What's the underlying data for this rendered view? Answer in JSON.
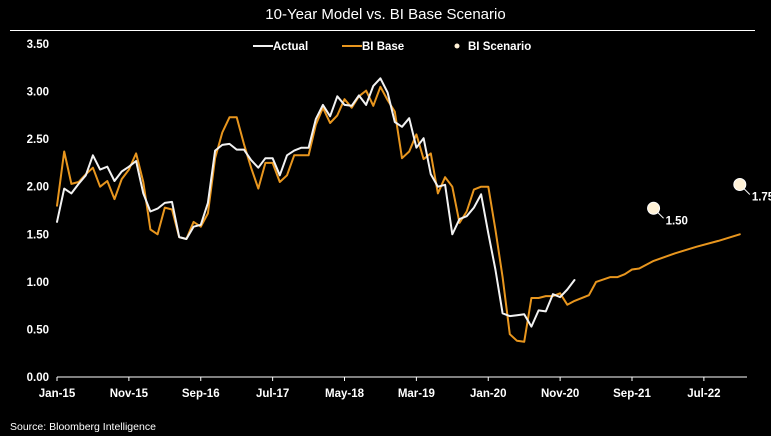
{
  "title": "10-Year Model vs. BI Base Scenario",
  "source": "Source: Bloomberg Intelligence",
  "colors": {
    "background": "#000000",
    "actual": "#f2f2f2",
    "bi_base": "#e8961e",
    "scenario": "#fff1d6",
    "text": "#ffffff"
  },
  "chart_data": {
    "type": "line",
    "title": "10-Year Model vs. BI Base Scenario",
    "xlabel": "",
    "ylabel": "",
    "ylim": [
      0,
      3.5
    ],
    "yticks": [
      "0.00",
      "0.50",
      "1.00",
      "1.50",
      "2.00",
      "2.50",
      "3.00",
      "3.50"
    ],
    "ytick_values": [
      0,
      0.5,
      1,
      1.5,
      2,
      2.5,
      3,
      3.5
    ],
    "xlim": [
      "2015-01",
      "2023-01"
    ],
    "xticks": [
      "Jan-15",
      "Nov-15",
      "Sep-16",
      "Jul-17",
      "May-18",
      "Mar-19",
      "Jan-20",
      "Nov-20",
      "Sep-21",
      "Jul-22"
    ],
    "xtick_dates": [
      "2015-01",
      "2015-11",
      "2016-09",
      "2017-07",
      "2018-05",
      "2019-03",
      "2020-01",
      "2020-11",
      "2021-09",
      "2022-07"
    ],
    "grid": false,
    "legend": "top-center",
    "series": [
      {
        "name": "Actual",
        "points": [
          [
            "2015-01",
            1.63
          ],
          [
            "2015-02",
            1.98
          ],
          [
            "2015-03",
            1.93
          ],
          [
            "2015-04",
            2.03
          ],
          [
            "2015-05",
            2.12
          ],
          [
            "2015-06",
            2.33
          ],
          [
            "2015-07",
            2.18
          ],
          [
            "2015-08",
            2.21
          ],
          [
            "2015-09",
            2.06
          ],
          [
            "2015-10",
            2.16
          ],
          [
            "2015-11",
            2.21
          ],
          [
            "2015-12",
            2.27
          ],
          [
            "2016-01",
            1.93
          ],
          [
            "2016-02",
            1.74
          ],
          [
            "2016-03",
            1.77
          ],
          [
            "2016-04",
            1.83
          ],
          [
            "2016-05",
            1.84
          ],
          [
            "2016-06",
            1.47
          ],
          [
            "2016-07",
            1.45
          ],
          [
            "2016-08",
            1.58
          ],
          [
            "2016-09",
            1.6
          ],
          [
            "2016-10",
            1.83
          ],
          [
            "2016-11",
            2.38
          ],
          [
            "2016-12",
            2.44
          ],
          [
            "2017-01",
            2.45
          ],
          [
            "2017-02",
            2.39
          ],
          [
            "2017-03",
            2.39
          ],
          [
            "2017-04",
            2.28
          ],
          [
            "2017-05",
            2.2
          ],
          [
            "2017-06",
            2.3
          ],
          [
            "2017-07",
            2.3
          ],
          [
            "2017-08",
            2.12
          ],
          [
            "2017-09",
            2.33
          ],
          [
            "2017-10",
            2.38
          ],
          [
            "2017-11",
            2.41
          ],
          [
            "2017-12",
            2.41
          ],
          [
            "2018-01",
            2.71
          ],
          [
            "2018-02",
            2.86
          ],
          [
            "2018-03",
            2.74
          ],
          [
            "2018-04",
            2.95
          ],
          [
            "2018-05",
            2.86
          ],
          [
            "2018-06",
            2.85
          ],
          [
            "2018-07",
            2.96
          ],
          [
            "2018-08",
            2.86
          ],
          [
            "2018-09",
            3.06
          ],
          [
            "2018-10",
            3.14
          ],
          [
            "2018-11",
            2.99
          ],
          [
            "2018-12",
            2.68
          ],
          [
            "2019-01",
            2.63
          ],
          [
            "2019-02",
            2.72
          ],
          [
            "2019-03",
            2.41
          ],
          [
            "2019-04",
            2.51
          ],
          [
            "2019-05",
            2.13
          ],
          [
            "2019-06",
            2.0
          ],
          [
            "2019-07",
            2.02
          ],
          [
            "2019-08",
            1.5
          ],
          [
            "2019-09",
            1.66
          ],
          [
            "2019-10",
            1.69
          ],
          [
            "2019-11",
            1.78
          ],
          [
            "2019-12",
            1.92
          ],
          [
            "2020-01",
            1.51
          ],
          [
            "2020-02",
            1.13
          ],
          [
            "2020-03",
            0.67
          ],
          [
            "2020-04",
            0.64
          ],
          [
            "2020-05",
            0.65
          ],
          [
            "2020-06",
            0.66
          ],
          [
            "2020-07",
            0.53
          ],
          [
            "2020-08",
            0.7
          ],
          [
            "2020-09",
            0.69
          ],
          [
            "2020-10",
            0.87
          ],
          [
            "2020-11",
            0.84
          ],
          [
            "2020-12",
            0.92
          ],
          [
            "2021-01",
            1.02
          ]
        ]
      },
      {
        "name": "BI Base",
        "points": [
          [
            "2015-01",
            1.8
          ],
          [
            "2015-02",
            2.37
          ],
          [
            "2015-03",
            2.03
          ],
          [
            "2015-04",
            2.05
          ],
          [
            "2015-05",
            2.13
          ],
          [
            "2015-06",
            2.2
          ],
          [
            "2015-07",
            2.0
          ],
          [
            "2015-08",
            2.06
          ],
          [
            "2015-09",
            1.87
          ],
          [
            "2015-10",
            2.08
          ],
          [
            "2015-11",
            2.18
          ],
          [
            "2015-12",
            2.35
          ],
          [
            "2016-01",
            2.05
          ],
          [
            "2016-02",
            1.55
          ],
          [
            "2016-03",
            1.5
          ],
          [
            "2016-04",
            1.78
          ],
          [
            "2016-05",
            1.76
          ],
          [
            "2016-06",
            1.47
          ],
          [
            "2016-07",
            1.45
          ],
          [
            "2016-08",
            1.63
          ],
          [
            "2016-09",
            1.58
          ],
          [
            "2016-10",
            1.72
          ],
          [
            "2016-11",
            2.3
          ],
          [
            "2016-12",
            2.57
          ],
          [
            "2017-01",
            2.73
          ],
          [
            "2017-02",
            2.73
          ],
          [
            "2017-03",
            2.45
          ],
          [
            "2017-04",
            2.2
          ],
          [
            "2017-05",
            1.98
          ],
          [
            "2017-06",
            2.25
          ],
          [
            "2017-07",
            2.25
          ],
          [
            "2017-08",
            2.05
          ],
          [
            "2017-09",
            2.12
          ],
          [
            "2017-10",
            2.33
          ],
          [
            "2017-11",
            2.33
          ],
          [
            "2017-12",
            2.33
          ],
          [
            "2018-01",
            2.65
          ],
          [
            "2018-02",
            2.83
          ],
          [
            "2018-03",
            2.67
          ],
          [
            "2018-04",
            2.75
          ],
          [
            "2018-05",
            2.92
          ],
          [
            "2018-06",
            2.83
          ],
          [
            "2018-07",
            2.95
          ],
          [
            "2018-08",
            3.01
          ],
          [
            "2018-09",
            2.85
          ],
          [
            "2018-10",
            3.05
          ],
          [
            "2018-11",
            2.91
          ],
          [
            "2018-12",
            2.79
          ],
          [
            "2019-01",
            2.3
          ],
          [
            "2019-02",
            2.37
          ],
          [
            "2019-03",
            2.55
          ],
          [
            "2019-04",
            2.29
          ],
          [
            "2019-05",
            2.35
          ],
          [
            "2019-06",
            1.93
          ],
          [
            "2019-07",
            2.1
          ],
          [
            "2019-08",
            2.0
          ],
          [
            "2019-09",
            1.62
          ],
          [
            "2019-10",
            1.74
          ],
          [
            "2019-11",
            1.97
          ],
          [
            "2019-12",
            2.0
          ],
          [
            "2020-01",
            2.0
          ],
          [
            "2020-02",
            1.55
          ],
          [
            "2020-03",
            1.05
          ],
          [
            "2020-04",
            0.45
          ],
          [
            "2020-05",
            0.38
          ],
          [
            "2020-06",
            0.37
          ],
          [
            "2020-07",
            0.83
          ],
          [
            "2020-08",
            0.83
          ],
          [
            "2020-09",
            0.85
          ],
          [
            "2020-10",
            0.85
          ],
          [
            "2020-11",
            0.88
          ],
          [
            "2020-12",
            0.76
          ],
          [
            "2021-01",
            0.8
          ],
          [
            "2021-03",
            0.86
          ],
          [
            "2021-04",
            1.0
          ],
          [
            "2021-06",
            1.05
          ],
          [
            "2021-07",
            1.05
          ],
          [
            "2021-08",
            1.08
          ],
          [
            "2021-09",
            1.13
          ],
          [
            "2021-10",
            1.14
          ],
          [
            "2021-12",
            1.22
          ],
          [
            "2022-03",
            1.3
          ],
          [
            "2022-06",
            1.37
          ],
          [
            "2022-09",
            1.43
          ],
          [
            "2022-12",
            1.5
          ]
        ]
      }
    ],
    "scenario_label": "BI Scenario",
    "scenario_points": [
      {
        "x": "2021-12",
        "y": 1.5,
        "label": "1.50"
      },
      {
        "x": "2022-12",
        "y": 1.75,
        "label": "1.75"
      }
    ]
  }
}
